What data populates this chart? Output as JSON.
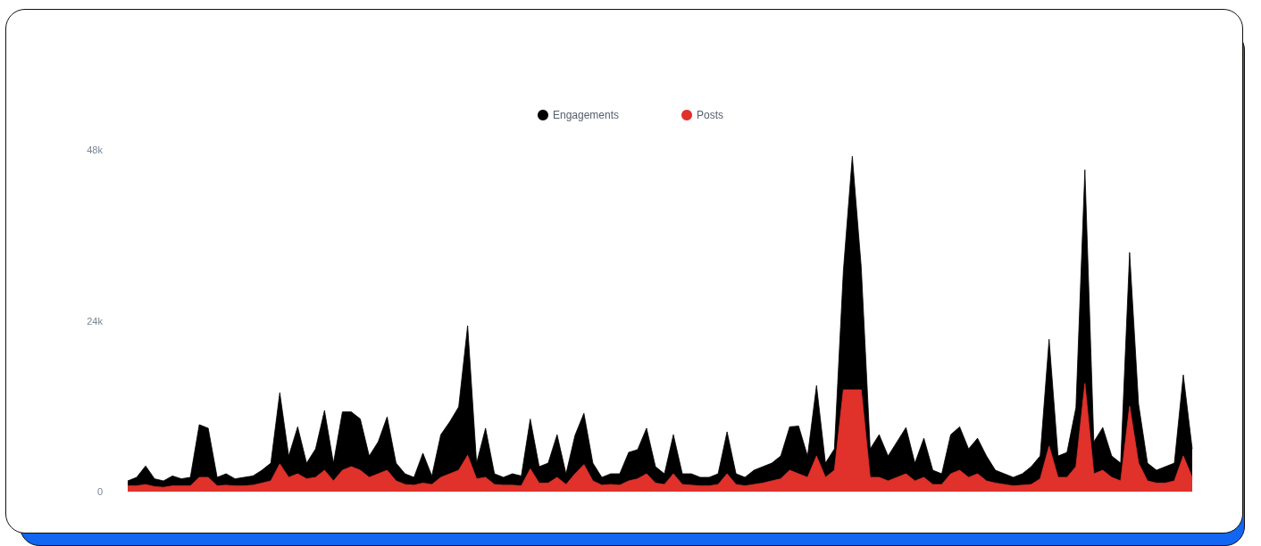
{
  "chart_data": {
    "type": "area",
    "categories": [
      null,
      null,
      null,
      null,
      null,
      null,
      null,
      null,
      null,
      null,
      null,
      null,
      null,
      null,
      null,
      null,
      null,
      null,
      null,
      null,
      null,
      null,
      null,
      null,
      null,
      null,
      null,
      null,
      null,
      null,
      null,
      null,
      null,
      null,
      null,
      null,
      null,
      null,
      null,
      null,
      null,
      null,
      null,
      null,
      null,
      null,
      null,
      null,
      null,
      null,
      null,
      null,
      null,
      null,
      null,
      null,
      null,
      null,
      null,
      null,
      null,
      null,
      null,
      null,
      null,
      null,
      null,
      null,
      null,
      null,
      null,
      null,
      null,
      null,
      null,
      null,
      null,
      null,
      null,
      null,
      null,
      null,
      null,
      null,
      null,
      null,
      null,
      null,
      null,
      null,
      null,
      null,
      null,
      null,
      null,
      null,
      null,
      null,
      null,
      null,
      null,
      null,
      null,
      null,
      null,
      null,
      null,
      null,
      null,
      null,
      null,
      null,
      null,
      null,
      null,
      null,
      null,
      null,
      null,
      null
    ],
    "series": [
      {
        "name": "Engagements",
        "color": "#000000",
        "values": [
          1500,
          2000,
          3600,
          1800,
          1500,
          2200,
          1800,
          2000,
          9400,
          8900,
          2000,
          2500,
          1800,
          2000,
          2200,
          3000,
          4000,
          13900,
          5000,
          9100,
          4000,
          6000,
          11400,
          4000,
          11200,
          11200,
          10200,
          5000,
          7000,
          10500,
          4000,
          2500,
          2000,
          5400,
          2200,
          8000,
          9800,
          11900,
          23300,
          4000,
          8900,
          2500,
          2000,
          2500,
          2200,
          10200,
          3500,
          4000,
          8000,
          2500,
          7900,
          11000,
          4000,
          2000,
          2500,
          2500,
          5500,
          5900,
          8900,
          3500,
          2500,
          8000,
          2500,
          2500,
          2000,
          2000,
          2500,
          8400,
          2500,
          2000,
          3000,
          3500,
          4000,
          5000,
          9100,
          9200,
          5000,
          14900,
          4000,
          6000,
          31000,
          47100,
          31500,
          6000,
          8000,
          5000,
          7000,
          9000,
          4000,
          7500,
          3000,
          2500,
          8000,
          9100,
          6000,
          7500,
          5000,
          3000,
          2500,
          2000,
          2500,
          3500,
          5000,
          21400,
          5000,
          5500,
          11800,
          45200,
          7000,
          9000,
          5000,
          4000,
          33600,
          12300,
          4000,
          3000,
          3500,
          4000,
          16400,
          6000
        ]
      },
      {
        "name": "Posts",
        "color": "#e0312b",
        "values": [
          800,
          800,
          1000,
          700,
          600,
          800,
          800,
          800,
          2000,
          2000,
          800,
          900,
          800,
          800,
          900,
          1200,
          1500,
          3900,
          2000,
          2500,
          1800,
          2000,
          3000,
          1500,
          3000,
          3500,
          3000,
          2000,
          2500,
          3000,
          1500,
          1000,
          900,
          1200,
          1000,
          2000,
          2500,
          3000,
          5100,
          1800,
          2000,
          1000,
          900,
          900,
          800,
          3200,
          1200,
          1200,
          2000,
          1000,
          2500,
          3800,
          1500,
          900,
          1000,
          900,
          1500,
          1800,
          2500,
          1200,
          1000,
          2500,
          1000,
          900,
          800,
          800,
          1000,
          2500,
          1000,
          800,
          1000,
          1200,
          1500,
          1800,
          3000,
          2500,
          2000,
          5000,
          2000,
          3000,
          14300,
          14300,
          14300,
          2000,
          2000,
          1500,
          2000,
          2500,
          1500,
          2000,
          1000,
          1000,
          2500,
          3000,
          2000,
          2500,
          1500,
          1200,
          1000,
          800,
          900,
          1000,
          1800,
          6400,
          2000,
          2000,
          3500,
          15200,
          2500,
          3000,
          2000,
          1500,
          12000,
          4000,
          1500,
          1200,
          1200,
          1500,
          5000,
          2000
        ]
      }
    ],
    "ylim": [
      0,
      48000
    ],
    "yticks": [
      0,
      {
        "value": 24000,
        "label": "24k"
      },
      {
        "value": 48000,
        "label": "48k"
      }
    ],
    "grid": false,
    "legend": "top",
    "marker": "none"
  }
}
